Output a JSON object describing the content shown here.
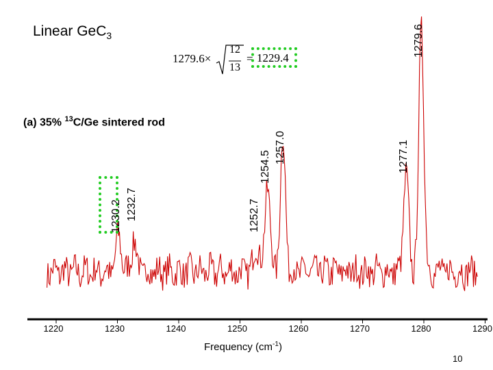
{
  "slide": {
    "title_prefix": "Linear Ge",
    "title_c": "C",
    "title_sub": "3",
    "subtitle_prefix": "(a) 35% ",
    "subtitle_sup": "13",
    "subtitle_suffix": "C/Ge sintered  rod",
    "formula_coef": "1279.6×",
    "formula_num": "12",
    "formula_den": "13",
    "formula_eq": "=",
    "formula_result": "1229.4",
    "page_number": "10",
    "highlight_color": "#22cc22",
    "line_color": "#cc0000"
  },
  "chart_data": {
    "type": "line",
    "title": "Linear GeC3",
    "xlabel_prefix": "Frequency (cm",
    "xlabel_sup": "-1",
    "xlabel_suffix": ")",
    "ylabel": "",
    "xlim": [
      1217.5,
      1290
    ],
    "ylim": [
      0,
      1
    ],
    "x_ticks": [
      1220,
      1230,
      1240,
      1250,
      1260,
      1270,
      1280,
      1290
    ],
    "x_tick_labels": [
      "1220",
      "1230",
      "1240",
      "1250",
      "1260",
      "1270",
      "1280",
      "1290"
    ],
    "peak_labels": [
      {
        "x": 1230.2,
        "label": "1230.2"
      },
      {
        "x": 1232.7,
        "label": "1232.7"
      },
      {
        "x": 1252.7,
        "label": "1252.7"
      },
      {
        "x": 1254.5,
        "label": "1254.5"
      },
      {
        "x": 1257.0,
        "label": "1257.0"
      },
      {
        "x": 1277.1,
        "label": "1277.1"
      },
      {
        "x": 1279.6,
        "label": "1279.6"
      }
    ],
    "peaks": [
      {
        "center": 1230.2,
        "height": 0.15
      },
      {
        "center": 1232.7,
        "height": 0.13
      },
      {
        "center": 1252.7,
        "height": 0.12
      },
      {
        "center": 1254.5,
        "height": 0.36
      },
      {
        "center": 1257.0,
        "height": 0.55
      },
      {
        "center": 1277.1,
        "height": 0.4
      },
      {
        "center": 1279.6,
        "height": 1.0
      }
    ],
    "baseline": 0.08,
    "noise_amplitude": 0.06
  }
}
